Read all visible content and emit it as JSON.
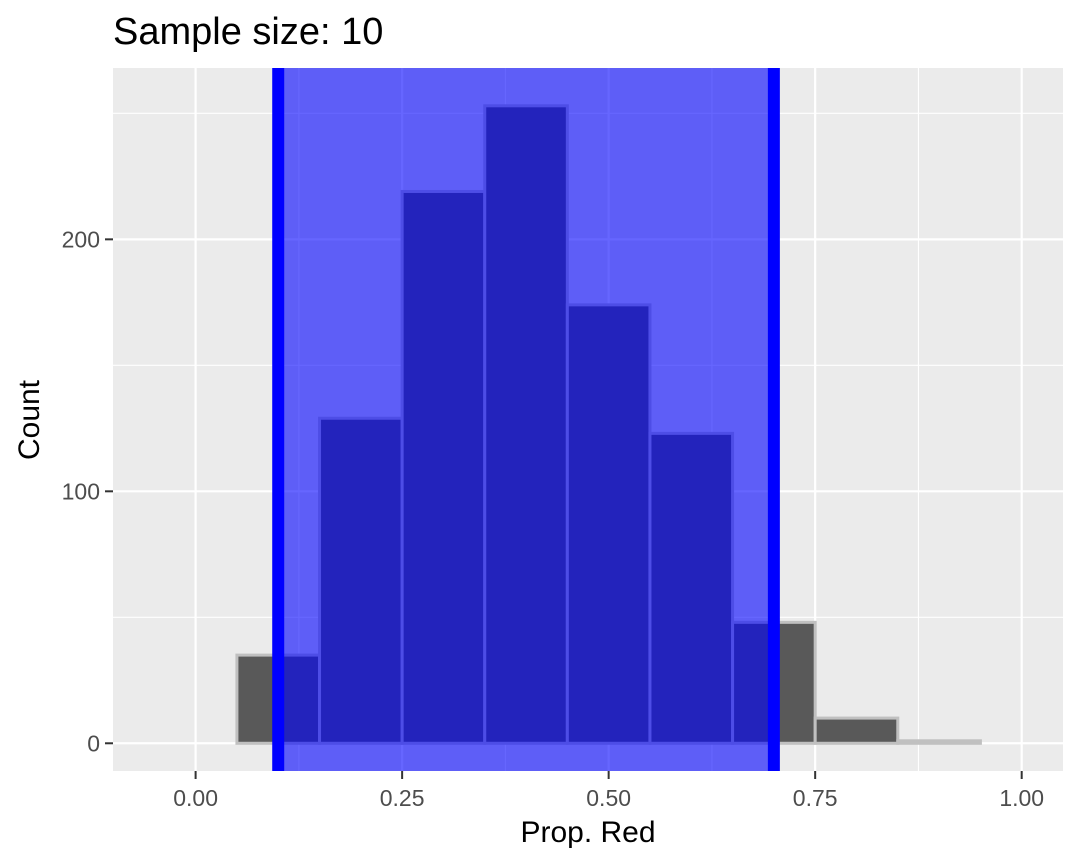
{
  "chart_data": {
    "type": "bar",
    "title": "Sample size: 10",
    "xlabel": "Prop. Red",
    "ylabel": "Count",
    "xlim": [
      -0.1,
      1.05
    ],
    "ylim": [
      -11,
      268
    ],
    "x_ticks": [
      0.0,
      0.25,
      0.5,
      0.75,
      1.0
    ],
    "x_tick_labels": [
      "0.00",
      "0.25",
      "0.50",
      "0.75",
      "1.00"
    ],
    "y_ticks": [
      0,
      100,
      200
    ],
    "y_tick_labels": [
      "0",
      "100",
      "200"
    ],
    "grid": true,
    "bins": [
      {
        "x": 0.1,
        "count": 35
      },
      {
        "x": 0.2,
        "count": 129
      },
      {
        "x": 0.3,
        "count": 219
      },
      {
        "x": 0.4,
        "count": 253
      },
      {
        "x": 0.5,
        "count": 174
      },
      {
        "x": 0.6,
        "count": 123
      },
      {
        "x": 0.7,
        "count": 48
      },
      {
        "x": 0.8,
        "count": 10
      },
      {
        "x": 0.9,
        "count": 1
      }
    ],
    "bin_width": 0.1,
    "interval": {
      "low": 0.1,
      "high": 0.7
    },
    "colors": {
      "bar_fill": "#595959",
      "bar_outline": "#c0c0c0",
      "interval_fill": "#0000ff",
      "interval_line": "#0000ff",
      "panel": "#ebebeb",
      "grid": "#ffffff"
    }
  }
}
